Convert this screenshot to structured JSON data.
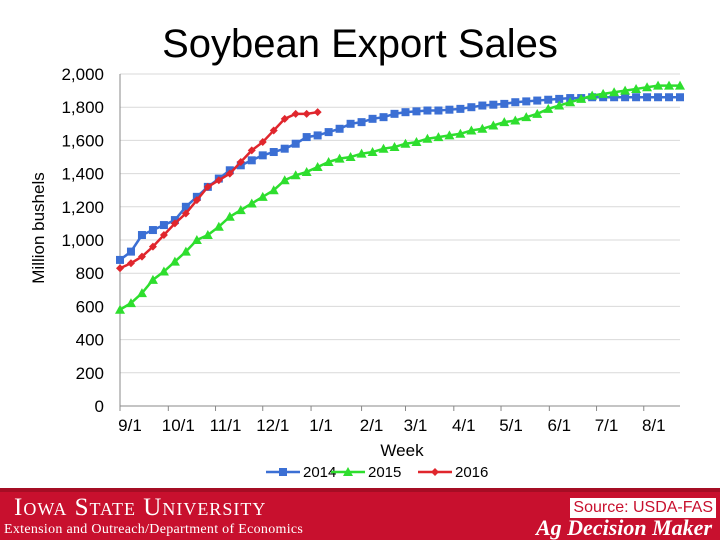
{
  "title": "Soybean Export Sales",
  "footer": {
    "university": "Iowa State University",
    "extension": "Extension and Outreach/Department of Economics",
    "source": "Source: USDA-FAS",
    "brand": "Ag Decision Maker",
    "colors": {
      "band": "#c8102e",
      "text": "#ffffff"
    }
  },
  "chart_data": {
    "type": "line",
    "title": "Soybean Export Sales",
    "xlabel": "Week",
    "ylabel": "Million bushels",
    "ylim": [
      0,
      2000
    ],
    "yticks": [
      0,
      200,
      400,
      600,
      800,
      1000,
      1200,
      1400,
      1600,
      1800,
      2000
    ],
    "ytick_labels": [
      "0",
      "200",
      "400",
      "600",
      "800",
      "1,000",
      "1,200",
      "1,400",
      "1,600",
      "1,800",
      "2,000"
    ],
    "xtick_labels": [
      "9/1",
      "10/1",
      "11/1",
      "12/1",
      "1/1",
      "2/1",
      "3/1",
      "4/1",
      "5/1",
      "6/1",
      "7/1",
      "8/1"
    ],
    "xtick_weeks": [
      0,
      4.4,
      8.7,
      13,
      17.4,
      22,
      26,
      30.4,
      34.7,
      39.1,
      43.4,
      47.7
    ],
    "x_unit": "week of marketing year",
    "grid": "horizontal",
    "legend_position": "bottom",
    "series": [
      {
        "name": "2014",
        "color": "#3b6fd4",
        "marker": "square",
        "x": [
          0,
          1,
          2,
          3,
          4,
          5,
          6,
          7,
          8,
          9,
          10,
          11,
          12,
          13,
          14,
          15,
          16,
          17,
          18,
          19,
          20,
          21,
          22,
          23,
          24,
          25,
          26,
          27,
          28,
          29,
          30,
          31,
          32,
          33,
          34,
          35,
          36,
          37,
          38,
          39,
          40,
          41,
          42,
          43,
          44,
          45,
          46,
          47,
          48,
          49,
          50,
          51
        ],
        "values": [
          880,
          930,
          1030,
          1060,
          1090,
          1120,
          1200,
          1260,
          1320,
          1370,
          1420,
          1450,
          1480,
          1510,
          1530,
          1550,
          1580,
          1620,
          1630,
          1650,
          1670,
          1700,
          1710,
          1730,
          1740,
          1760,
          1770,
          1775,
          1780,
          1780,
          1785,
          1790,
          1800,
          1810,
          1815,
          1820,
          1830,
          1835,
          1840,
          1845,
          1850,
          1855,
          1855,
          1860,
          1860,
          1860,
          1860,
          1860,
          1860,
          1860,
          1860,
          1860
        ]
      },
      {
        "name": "2015",
        "color": "#2ede2e",
        "marker": "triangle",
        "x": [
          0,
          1,
          2,
          3,
          4,
          5,
          6,
          7,
          8,
          9,
          10,
          11,
          12,
          13,
          14,
          15,
          16,
          17,
          18,
          19,
          20,
          21,
          22,
          23,
          24,
          25,
          26,
          27,
          28,
          29,
          30,
          31,
          32,
          33,
          34,
          35,
          36,
          37,
          38,
          39,
          40,
          41,
          42,
          43,
          44,
          45,
          46,
          47,
          48,
          49,
          50,
          51
        ],
        "values": [
          580,
          620,
          680,
          760,
          810,
          870,
          930,
          1000,
          1030,
          1080,
          1140,
          1180,
          1220,
          1260,
          1300,
          1360,
          1390,
          1410,
          1440,
          1470,
          1490,
          1500,
          1520,
          1530,
          1550,
          1560,
          1580,
          1590,
          1610,
          1620,
          1630,
          1640,
          1660,
          1670,
          1690,
          1710,
          1720,
          1740,
          1760,
          1790,
          1810,
          1830,
          1850,
          1870,
          1880,
          1890,
          1900,
          1910,
          1920,
          1930,
          1930,
          1930
        ]
      },
      {
        "name": "2016",
        "color": "#e0262d",
        "marker": "diamond",
        "x": [
          0,
          1,
          2,
          3,
          4,
          5,
          6,
          7,
          8,
          9,
          10,
          11,
          12,
          13,
          14,
          15,
          16,
          17,
          18
        ],
        "values": [
          830,
          860,
          900,
          960,
          1030,
          1100,
          1160,
          1240,
          1320,
          1360,
          1400,
          1470,
          1540,
          1590,
          1660,
          1730,
          1760,
          1760,
          1770
        ]
      }
    ]
  }
}
